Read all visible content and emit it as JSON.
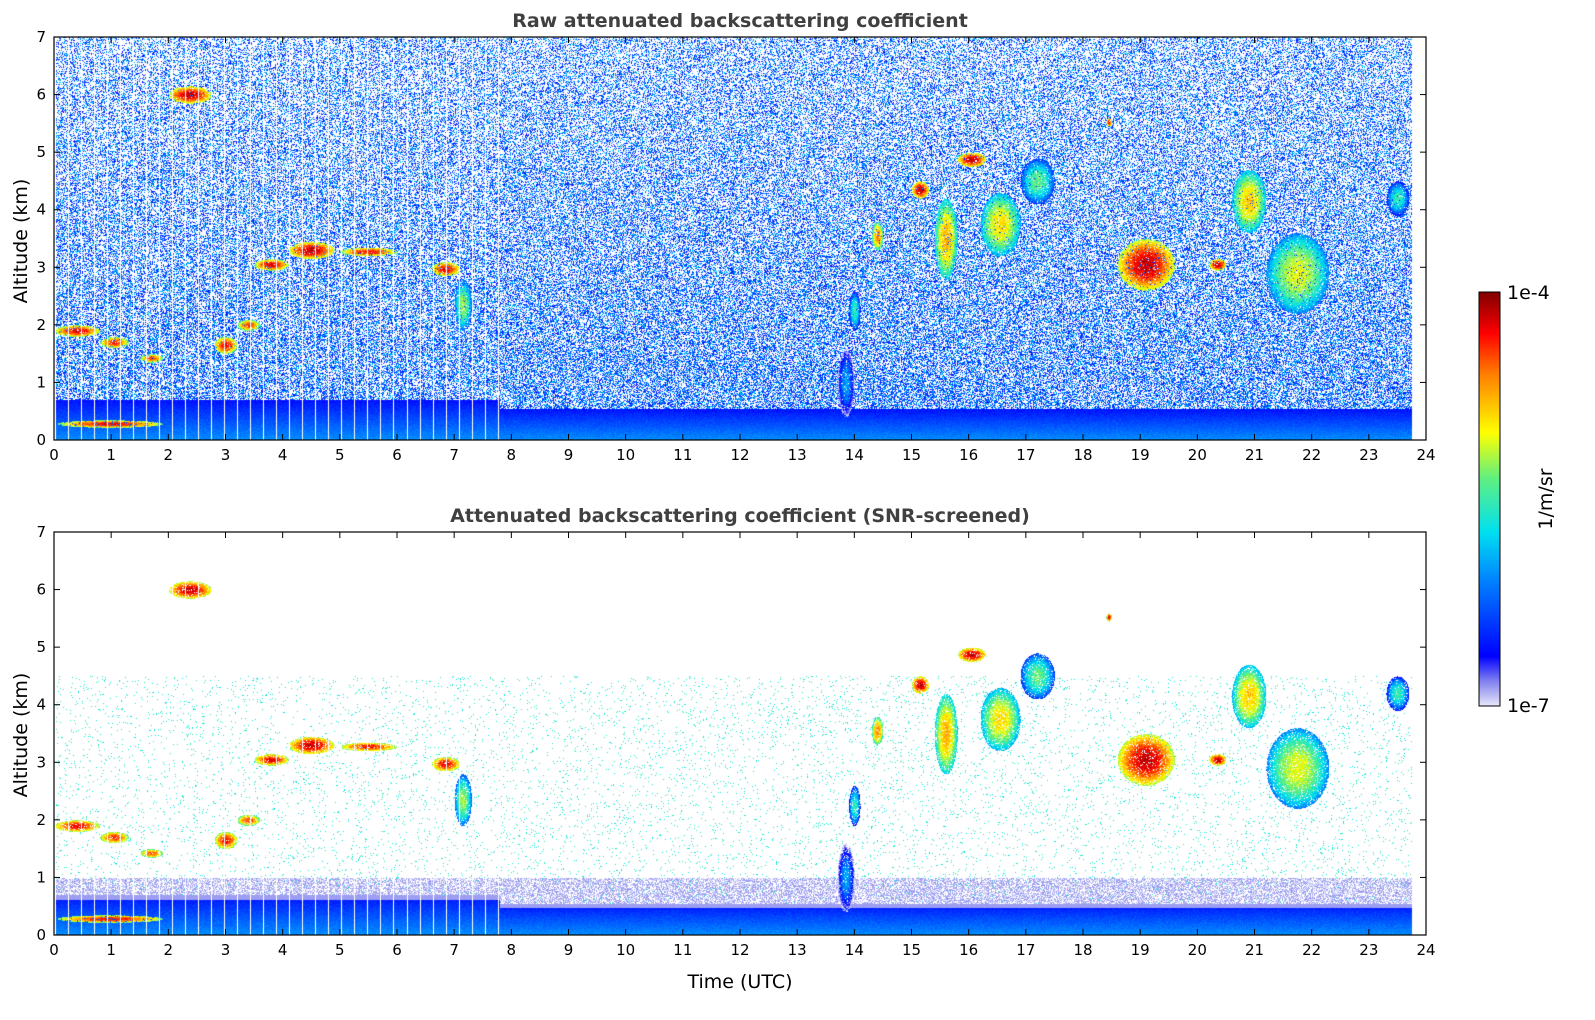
{
  "chart_data": [
    {
      "type": "heatmap",
      "title": "Raw attenuated backscattering coefficient",
      "xlabel": "",
      "ylabel": "Altitude (km)",
      "xlim": [
        0,
        24
      ],
      "ylim": [
        0,
        7
      ],
      "x_ticks": [
        "0",
        "1",
        "2",
        "3",
        "4",
        "5",
        "6",
        "7",
        "8",
        "9",
        "10",
        "11",
        "12",
        "13",
        "14",
        "15",
        "16",
        "17",
        "18",
        "19",
        "20",
        "21",
        "22",
        "23",
        "24"
      ],
      "y_ticks": [
        "0",
        "1",
        "2",
        "3",
        "4",
        "5",
        "6",
        "7"
      ],
      "screened": false
    },
    {
      "type": "heatmap",
      "title": "Attenuated backscattering coefficient (SNR-screened)",
      "xlabel": "Time (UTC)",
      "ylabel": "Altitude (km)",
      "xlim": [
        0,
        24
      ],
      "ylim": [
        0,
        7
      ],
      "x_ticks": [
        "0",
        "1",
        "2",
        "3",
        "4",
        "5",
        "6",
        "7",
        "8",
        "9",
        "10",
        "11",
        "12",
        "13",
        "14",
        "15",
        "16",
        "17",
        "18",
        "19",
        "20",
        "21",
        "22",
        "23",
        "24"
      ],
      "y_ticks": [
        "0",
        "1",
        "2",
        "3",
        "4",
        "5",
        "6",
        "7"
      ],
      "screened": true
    }
  ],
  "colorbar": {
    "label": "1/m/sr",
    "max_label": "1e-4",
    "min_label": "1e-7",
    "scale": "log",
    "colormap": "jet"
  },
  "features": [
    {
      "t0": 2.0,
      "t1": 2.75,
      "a0": 5.85,
      "a1": 6.15,
      "v": 0.95
    },
    {
      "t0": 0.0,
      "t1": 0.8,
      "a0": 1.8,
      "a1": 2.0,
      "v": 0.92
    },
    {
      "t0": 0.8,
      "t1": 1.3,
      "a0": 1.6,
      "a1": 1.8,
      "v": 0.88
    },
    {
      "t0": 1.5,
      "t1": 1.9,
      "a0": 1.35,
      "a1": 1.5,
      "v": 0.85
    },
    {
      "t0": 2.8,
      "t1": 3.2,
      "a0": 1.5,
      "a1": 1.8,
      "v": 0.9
    },
    {
      "t0": 3.2,
      "t1": 3.6,
      "a0": 1.9,
      "a1": 2.1,
      "v": 0.85
    },
    {
      "t0": 3.5,
      "t1": 4.1,
      "a0": 2.95,
      "a1": 3.15,
      "v": 0.92
    },
    {
      "t0": 4.1,
      "t1": 4.9,
      "a0": 3.15,
      "a1": 3.45,
      "v": 0.95
    },
    {
      "t0": 5.0,
      "t1": 6.0,
      "a0": 3.2,
      "a1": 3.35,
      "v": 0.9
    },
    {
      "t0": 6.6,
      "t1": 7.1,
      "a0": 2.85,
      "a1": 3.1,
      "v": 0.92
    },
    {
      "t0": 7.0,
      "t1": 7.3,
      "a0": 1.9,
      "a1": 2.8,
      "v": 0.6
    },
    {
      "t0": 0.05,
      "t1": 1.9,
      "a0": 0.22,
      "a1": 0.35,
      "v": 0.9
    },
    {
      "t0": 13.7,
      "t1": 14.0,
      "a0": 0.4,
      "a1": 1.6,
      "v": 0.35
    },
    {
      "t0": 13.9,
      "t1": 14.1,
      "a0": 1.9,
      "a1": 2.6,
      "v": 0.5
    },
    {
      "t0": 14.3,
      "t1": 14.5,
      "a0": 3.3,
      "a1": 3.8,
      "v": 0.8
    },
    {
      "t0": 15.0,
      "t1": 15.3,
      "a0": 4.2,
      "a1": 4.5,
      "v": 0.95
    },
    {
      "t0": 15.4,
      "t1": 15.8,
      "a0": 2.8,
      "a1": 4.2,
      "v": 0.75
    },
    {
      "t0": 15.8,
      "t1": 16.3,
      "a0": 4.75,
      "a1": 5.0,
      "v": 0.95
    },
    {
      "t0": 16.2,
      "t1": 16.9,
      "a0": 3.2,
      "a1": 4.3,
      "v": 0.7
    },
    {
      "t0": 16.9,
      "t1": 17.5,
      "a0": 4.1,
      "a1": 4.9,
      "v": 0.55
    },
    {
      "t0": 18.4,
      "t1": 18.5,
      "a0": 5.45,
      "a1": 5.6,
      "v": 0.9
    },
    {
      "t0": 18.6,
      "t1": 19.6,
      "a0": 2.6,
      "a1": 3.5,
      "v": 0.95
    },
    {
      "t0": 20.2,
      "t1": 20.5,
      "a0": 2.95,
      "a1": 3.15,
      "v": 0.95
    },
    {
      "t0": 20.6,
      "t1": 21.2,
      "a0": 3.6,
      "a1": 4.7,
      "v": 0.72
    },
    {
      "t0": 21.2,
      "t1": 22.3,
      "a0": 2.2,
      "a1": 3.6,
      "v": 0.65
    },
    {
      "t0": 23.3,
      "t1": 23.7,
      "a0": 3.9,
      "a1": 4.5,
      "v": 0.5
    }
  ]
}
